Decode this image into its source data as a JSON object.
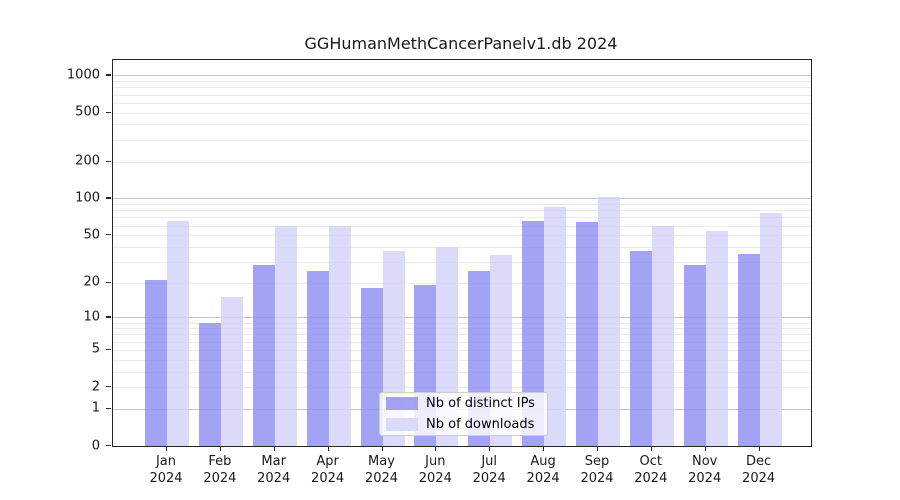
{
  "title": "GGHumanMethCancerPanelv1.db 2024",
  "chart_data": {
    "type": "bar",
    "categories": [
      "Jan",
      "Feb",
      "Mar",
      "Apr",
      "May",
      "Jun",
      "Jul",
      "Aug",
      "Sep",
      "Oct",
      "Nov",
      "Dec"
    ],
    "category_year_label": "2024",
    "series": [
      {
        "name": "Nb of distinct IPs",
        "color": "#8c8cf2",
        "values": [
          21,
          9,
          28,
          25,
          18,
          19,
          25,
          65,
          64,
          37,
          28,
          35
        ]
      },
      {
        "name": "Nb of downloads",
        "color": "#d2d2f8",
        "values": [
          65,
          15,
          59,
          59,
          37,
          40,
          34,
          85,
          103,
          60,
          54,
          76
        ]
      }
    ],
    "yscale": "log1p",
    "ylim": [
      0,
      1332
    ],
    "ytick_labels": [
      0,
      1,
      2,
      5,
      10,
      20,
      50,
      100,
      200,
      500,
      1000
    ],
    "grid_major": [
      1,
      10,
      100,
      1000
    ],
    "grid_minor": [
      2,
      3,
      4,
      5,
      6,
      7,
      8,
      9,
      20,
      30,
      40,
      50,
      60,
      70,
      80,
      90,
      200,
      300,
      400,
      500,
      600,
      700,
      800,
      900
    ],
    "legend_position": "lower center",
    "bar_alpha": 0.8
  },
  "colors": {
    "spine": "#262626",
    "major_grid": "#c6c6c6",
    "minor_grid": "#ebebeb",
    "text": "#1a1a1a"
  }
}
